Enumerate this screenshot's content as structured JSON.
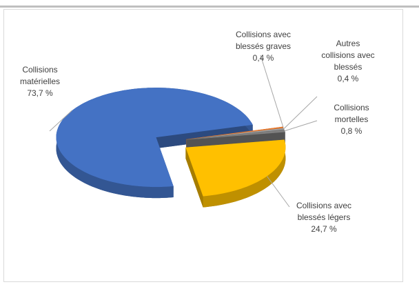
{
  "chart_data": {
    "type": "pie",
    "categories": [
      "Collisions matérielles",
      "Collisions avec blessés graves",
      "Autres collisions avec blessés",
      "Collisions mortelles",
      "Collisions avec blessés légers"
    ],
    "values": [
      73.7,
      0.4,
      0.4,
      0.8,
      24.7
    ],
    "value_labels": [
      "73,7 %",
      "0,4 %",
      "0,4 %",
      "0,8 %",
      "24,7 %"
    ],
    "colors": [
      "#4472c4",
      "#ed7d31",
      "#a5a5a5",
      "#7f7f7f",
      "#ffc000"
    ]
  }
}
